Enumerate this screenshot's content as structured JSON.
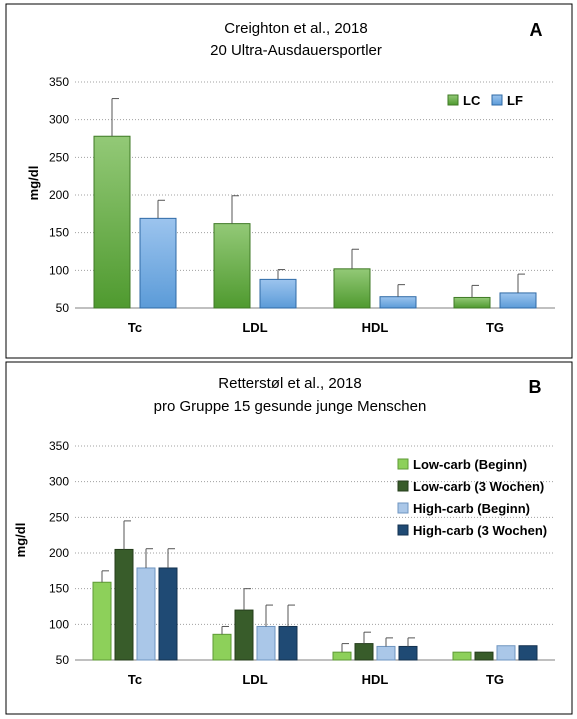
{
  "chart_data": [
    {
      "type": "bar",
      "panel_letter": "A",
      "title": "Creighton et al., 2018",
      "subtitle": "20 Ultra-Ausdauersportler",
      "ylabel": "mg/dl",
      "xlabel": "",
      "ylim": [
        50,
        350
      ],
      "yticks": [
        50,
        100,
        150,
        200,
        250,
        300,
        350
      ],
      "grid": true,
      "legend_position": "top-right",
      "categories": [
        "Tc",
        "LDL",
        "HDL",
        "TG"
      ],
      "series": [
        {
          "name": "LC",
          "color_top": "#93c977",
          "color_bottom": "#4f9a2f",
          "stroke": "#3f7a26",
          "values": [
            278,
            162,
            102,
            64
          ],
          "errors": [
            50,
            37,
            26,
            16
          ]
        },
        {
          "name": "LF",
          "color_top": "#9cc4ee",
          "color_bottom": "#5b9bd8",
          "stroke": "#2f6aa6",
          "values": [
            169,
            88,
            65,
            70
          ],
          "errors": [
            24,
            13,
            16,
            25
          ]
        }
      ]
    },
    {
      "type": "bar",
      "panel_letter": "B",
      "title": "Retterstøl et al., 2018",
      "subtitle": "pro Gruppe 15 gesunde junge Menschen",
      "ylabel": "mg/dl",
      "xlabel": "",
      "ylim": [
        50,
        350
      ],
      "yticks": [
        50,
        100,
        150,
        200,
        250,
        300,
        350
      ],
      "grid": true,
      "legend_position": "top-right",
      "categories": [
        "Tc",
        "LDL",
        "HDL",
        "TG"
      ],
      "series": [
        {
          "name": "Low-carb (Beginn)",
          "color_top": "#8dd05a",
          "color_bottom": "#8dd05a",
          "stroke": "#5e9a36",
          "values": [
            159,
            86,
            61,
            61
          ],
          "errors": [
            16,
            11,
            12,
            0
          ]
        },
        {
          "name": "Low-carb (3 Wochen)",
          "color_top": "#385c2a",
          "color_bottom": "#385c2a",
          "stroke": "#243d1b",
          "values": [
            205,
            120,
            73,
            61
          ],
          "errors": [
            40,
            30,
            16,
            0
          ]
        },
        {
          "name": "High-carb (Beginn)",
          "color_top": "#aac7e8",
          "color_bottom": "#aac7e8",
          "stroke": "#6f95c0",
          "values": [
            179,
            97,
            69,
            70
          ],
          "errors": [
            27,
            30,
            12,
            0
          ]
        },
        {
          "name": "High-carb (3 Wochen)",
          "color_top": "#1f4a74",
          "color_bottom": "#1f4a74",
          "stroke": "#13314f",
          "values": [
            179,
            97,
            69,
            70
          ],
          "errors": [
            27,
            30,
            12,
            0
          ]
        }
      ]
    }
  ]
}
